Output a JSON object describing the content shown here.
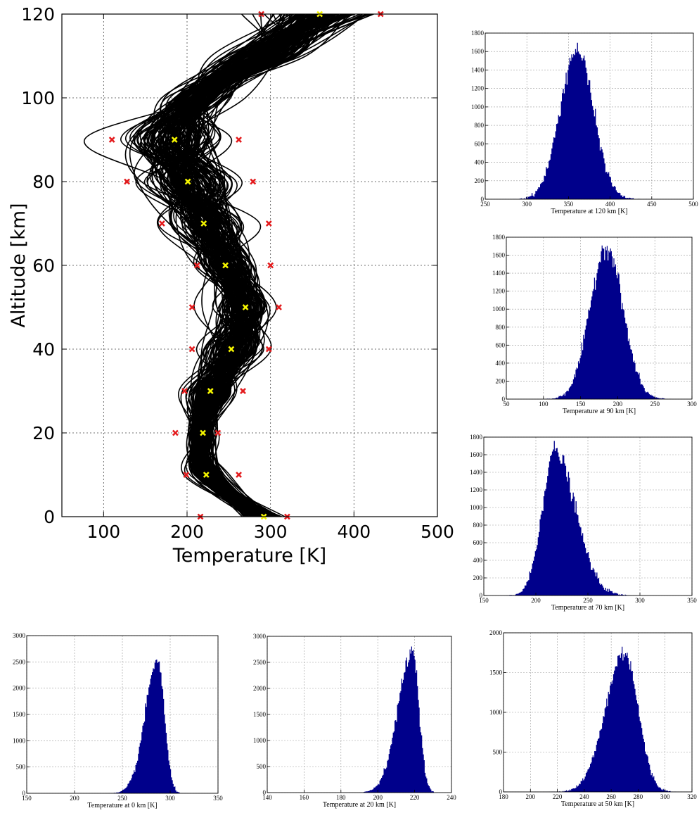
{
  "chart_data": [
    {
      "id": "profiles",
      "type": "line",
      "xlabel": "Temperature [K]",
      "ylabel": "Altitude [km]",
      "xlim": [
        50,
        500
      ],
      "ylim": [
        0,
        120
      ],
      "xticks": [
        100,
        200,
        300,
        400,
        500
      ],
      "yticks": [
        0,
        20,
        40,
        60,
        80,
        100,
        120
      ],
      "grid": true,
      "line_color": "#000000",
      "center_profile": {
        "altitude": [
          0,
          10,
          20,
          30,
          40,
          50,
          60,
          70,
          80,
          90,
          100,
          110,
          120
        ],
        "temperature": [
          290,
          225,
          218,
          230,
          255,
          270,
          247,
          222,
          200,
          185,
          215,
          290,
          360
        ]
      },
      "upper_bound_markers": {
        "color": "#e31a1c",
        "points": [
          [
            320,
            0
          ],
          [
            262,
            10
          ],
          [
            237,
            20
          ],
          [
            267,
            30
          ],
          [
            298,
            40
          ],
          [
            310,
            50
          ],
          [
            300,
            60
          ],
          [
            298,
            70
          ],
          [
            279,
            80
          ],
          [
            262,
            90
          ],
          [
            432,
            120
          ]
        ]
      },
      "lower_bound_markers": {
        "color": "#e31a1c",
        "points": [
          [
            216,
            0
          ],
          [
            199,
            10
          ],
          [
            186,
            20
          ],
          [
            197,
            30
          ],
          [
            206,
            40
          ],
          [
            206,
            50
          ],
          [
            212,
            60
          ],
          [
            170,
            70
          ],
          [
            128,
            80
          ],
          [
            110,
            90
          ],
          [
            289,
            120
          ]
        ]
      },
      "mean_markers": {
        "color": "#f5f500",
        "points": [
          [
            292,
            0
          ],
          [
            223,
            10
          ],
          [
            219,
            20
          ],
          [
            228,
            30
          ],
          [
            253,
            40
          ],
          [
            270,
            50
          ],
          [
            246,
            60
          ],
          [
            220,
            70
          ],
          [
            201,
            80
          ],
          [
            185,
            90
          ],
          [
            359,
            120
          ]
        ]
      }
    },
    {
      "id": "hist120",
      "type": "bar",
      "xlabel": "Temperature at 120 km [K]",
      "xlim": [
        250,
        500
      ],
      "ylim": [
        0,
        1800
      ],
      "xticks": [
        250,
        300,
        350,
        400,
        450,
        500
      ],
      "yticks": [
        0,
        200,
        400,
        600,
        800,
        1000,
        1200,
        1400,
        1600,
        1800
      ],
      "mean": 360,
      "left_sd": 20,
      "right_sd": 20,
      "peak": 1620,
      "grid": true,
      "color": "#00008b"
    },
    {
      "id": "hist90",
      "type": "bar",
      "xlabel": "Temperature at 90 km [K]",
      "xlim": [
        50,
        300
      ],
      "ylim": [
        0,
        1800
      ],
      "xticks": [
        50,
        100,
        150,
        200,
        250,
        300
      ],
      "yticks": [
        0,
        200,
        400,
        600,
        800,
        1000,
        1200,
        1400,
        1600,
        1800
      ],
      "mean": 185,
      "left_sd": 22,
      "right_sd": 22,
      "peak": 1700,
      "grid": true,
      "color": "#00008b"
    },
    {
      "id": "hist70",
      "type": "bar",
      "xlabel": "Temperature at 70 km [K]",
      "xlim": [
        150,
        350
      ],
      "ylim": [
        0,
        1800
      ],
      "xticks": [
        150,
        200,
        250,
        300,
        350
      ],
      "yticks": [
        0,
        200,
        400,
        600,
        800,
        1000,
        1200,
        1400,
        1600,
        1800
      ],
      "mean": 218,
      "left_sd": 12,
      "right_sd": 20,
      "peak": 1640,
      "grid": true,
      "color": "#00008b"
    },
    {
      "id": "hist0",
      "type": "bar",
      "xlabel": "Temperature at 0 km [K]",
      "xlim": [
        150,
        350
      ],
      "ylim": [
        0,
        3000
      ],
      "xticks": [
        150,
        200,
        250,
        300,
        350
      ],
      "yticks": [
        0,
        500,
        1000,
        1500,
        2000,
        2500,
        3000
      ],
      "mean": 287,
      "left_sd": 13,
      "right_sd": 7,
      "peak": 2540,
      "grid": true,
      "color": "#00008b"
    },
    {
      "id": "hist20",
      "type": "bar",
      "xlabel": "Temperature at 20 km [K]",
      "xlim": [
        140,
        240
      ],
      "ylim": [
        0,
        3000
      ],
      "xticks": [
        140,
        160,
        180,
        200,
        220,
        240
      ],
      "yticks": [
        0,
        500,
        1000,
        1500,
        2000,
        2500,
        3000
      ],
      "mean": 219,
      "left_sd": 8,
      "right_sd": 3.5,
      "peak": 2720,
      "grid": true,
      "color": "#00008b"
    },
    {
      "id": "hist50",
      "type": "bar",
      "xlabel": "Temperature at 50 km [K]",
      "xlim": [
        180,
        320
      ],
      "ylim": [
        0,
        2000
      ],
      "xticks": [
        180,
        200,
        220,
        240,
        260,
        280,
        300,
        320
      ],
      "yticks": [
        0,
        500,
        1000,
        1500,
        2000
      ],
      "mean": 270,
      "left_sd": 14,
      "right_sd": 10,
      "peak": 1760,
      "grid": true,
      "color": "#00008b"
    }
  ]
}
